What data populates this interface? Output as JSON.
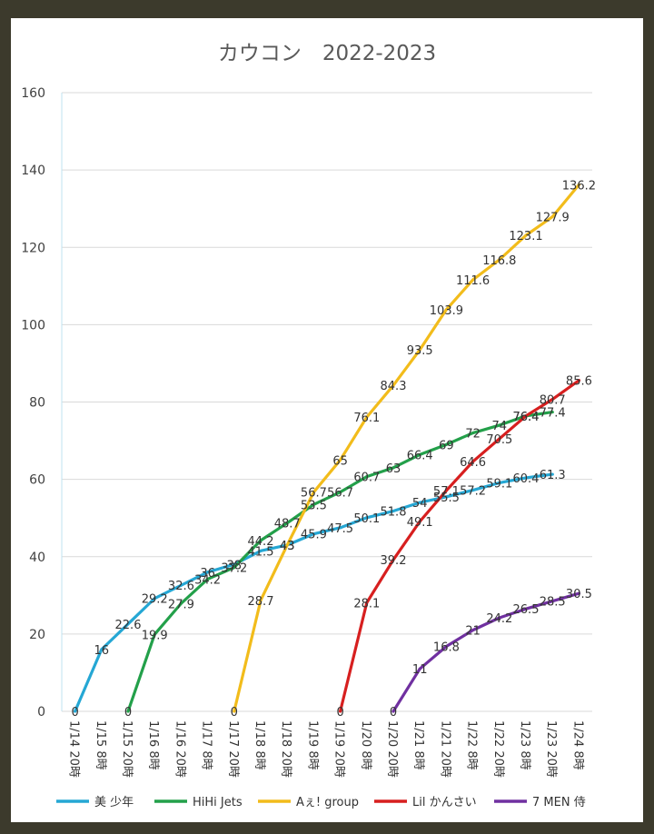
{
  "chart_data": {
    "type": "line",
    "title": "カウコン　2022-2023",
    "x": [
      "1/14 20時",
      "1/15 8時",
      "1/15 20時",
      "1/16 8時",
      "1/16 20時",
      "1/17 8時",
      "1/17 20時",
      "1/18 8時",
      "1/18 20時",
      "1/19 8時",
      "1/19 20時",
      "1/20 8時",
      "1/20 20時",
      "1/21 8時",
      "1/21 20時",
      "1/22 8時",
      "1/22 20時",
      "1/23 8時",
      "1/23 20時",
      "1/24 8時"
    ],
    "ylim": [
      0,
      160
    ],
    "yticks": [
      0,
      20,
      40,
      60,
      80,
      100,
      120,
      140,
      160
    ],
    "grid": true,
    "legend": "bottom",
    "series": [
      {
        "name": "美 少年",
        "color": "#25a7d4",
        "values": [
          0,
          16,
          22.6,
          29.2,
          32.6,
          36,
          38,
          41.5,
          43,
          45.9,
          47.5,
          50.1,
          51.8,
          54,
          55.5,
          57.2,
          59.1,
          60.4,
          61.3,
          null
        ],
        "labels": [
          "0",
          "16",
          "22.6",
          "29.2",
          "32.6",
          "36",
          "38",
          "41.5",
          "43",
          "45.9",
          "47.5",
          "50.1",
          "51.8",
          "54",
          "55.5",
          "57.2",
          "59.1",
          "60.4",
          "61.3",
          ""
        ]
      },
      {
        "name": "HiHi Jets",
        "color": "#23a04a",
        "values": [
          null,
          null,
          0,
          19.9,
          27.9,
          34.2,
          37.2,
          44.2,
          48.7,
          53.5,
          56.7,
          60.7,
          63,
          66.4,
          69,
          72,
          74,
          76.4,
          77.4,
          null
        ],
        "labels": [
          "",
          "",
          "0",
          "19.9",
          "27.9",
          "34.2",
          "37.2",
          "44.2",
          "48.7",
          "53.5",
          "56.7",
          "60.7",
          "63",
          "66.4",
          "69",
          "72",
          "74",
          "76.4",
          "77.4",
          ""
        ]
      },
      {
        "name": "Aぇ! group",
        "color": "#f2bc1b",
        "values": [
          null,
          null,
          null,
          null,
          null,
          null,
          0,
          28.7,
          43,
          56.7,
          65,
          76.1,
          84.3,
          93.5,
          103.9,
          111.6,
          116.8,
          123.1,
          127.9,
          136.2
        ],
        "labels": [
          "",
          "",
          "",
          "",
          "",
          "",
          "0",
          "28.7",
          "43",
          "56.7",
          "65",
          "76.1",
          "84.3",
          "93.5",
          "103.9",
          "111.6",
          "116.8",
          "123.1",
          "127.9",
          "136.2"
        ]
      },
      {
        "name": "Lil かんさい",
        "color": "#d71f1f",
        "values": [
          null,
          null,
          null,
          null,
          null,
          null,
          null,
          null,
          null,
          null,
          0,
          28.1,
          39.2,
          49.1,
          57.1,
          64.6,
          70.5,
          76.4,
          80.7,
          85.6
        ],
        "labels": [
          "",
          "",
          "",
          "",
          "",
          "",
          "",
          "",
          "",
          "",
          "0",
          "28.1",
          "39.2",
          "49.1",
          "57.1",
          "64.6",
          "70.5",
          "76.4",
          "80.7",
          "85.6"
        ]
      },
      {
        "name": "7 MEN 侍",
        "color": "#7030a0",
        "values": [
          null,
          null,
          null,
          null,
          null,
          null,
          null,
          null,
          null,
          null,
          null,
          null,
          0,
          11,
          16.8,
          21,
          24.2,
          26.5,
          28.5,
          30.5
        ],
        "labels": [
          "",
          "",
          "",
          "",
          "",
          "",
          "",
          "",
          "",
          "",
          "",
          "",
          "0",
          "11",
          "16.8",
          "21",
          "24.2",
          "26.5",
          "28.5",
          "30.5"
        ]
      }
    ]
  }
}
